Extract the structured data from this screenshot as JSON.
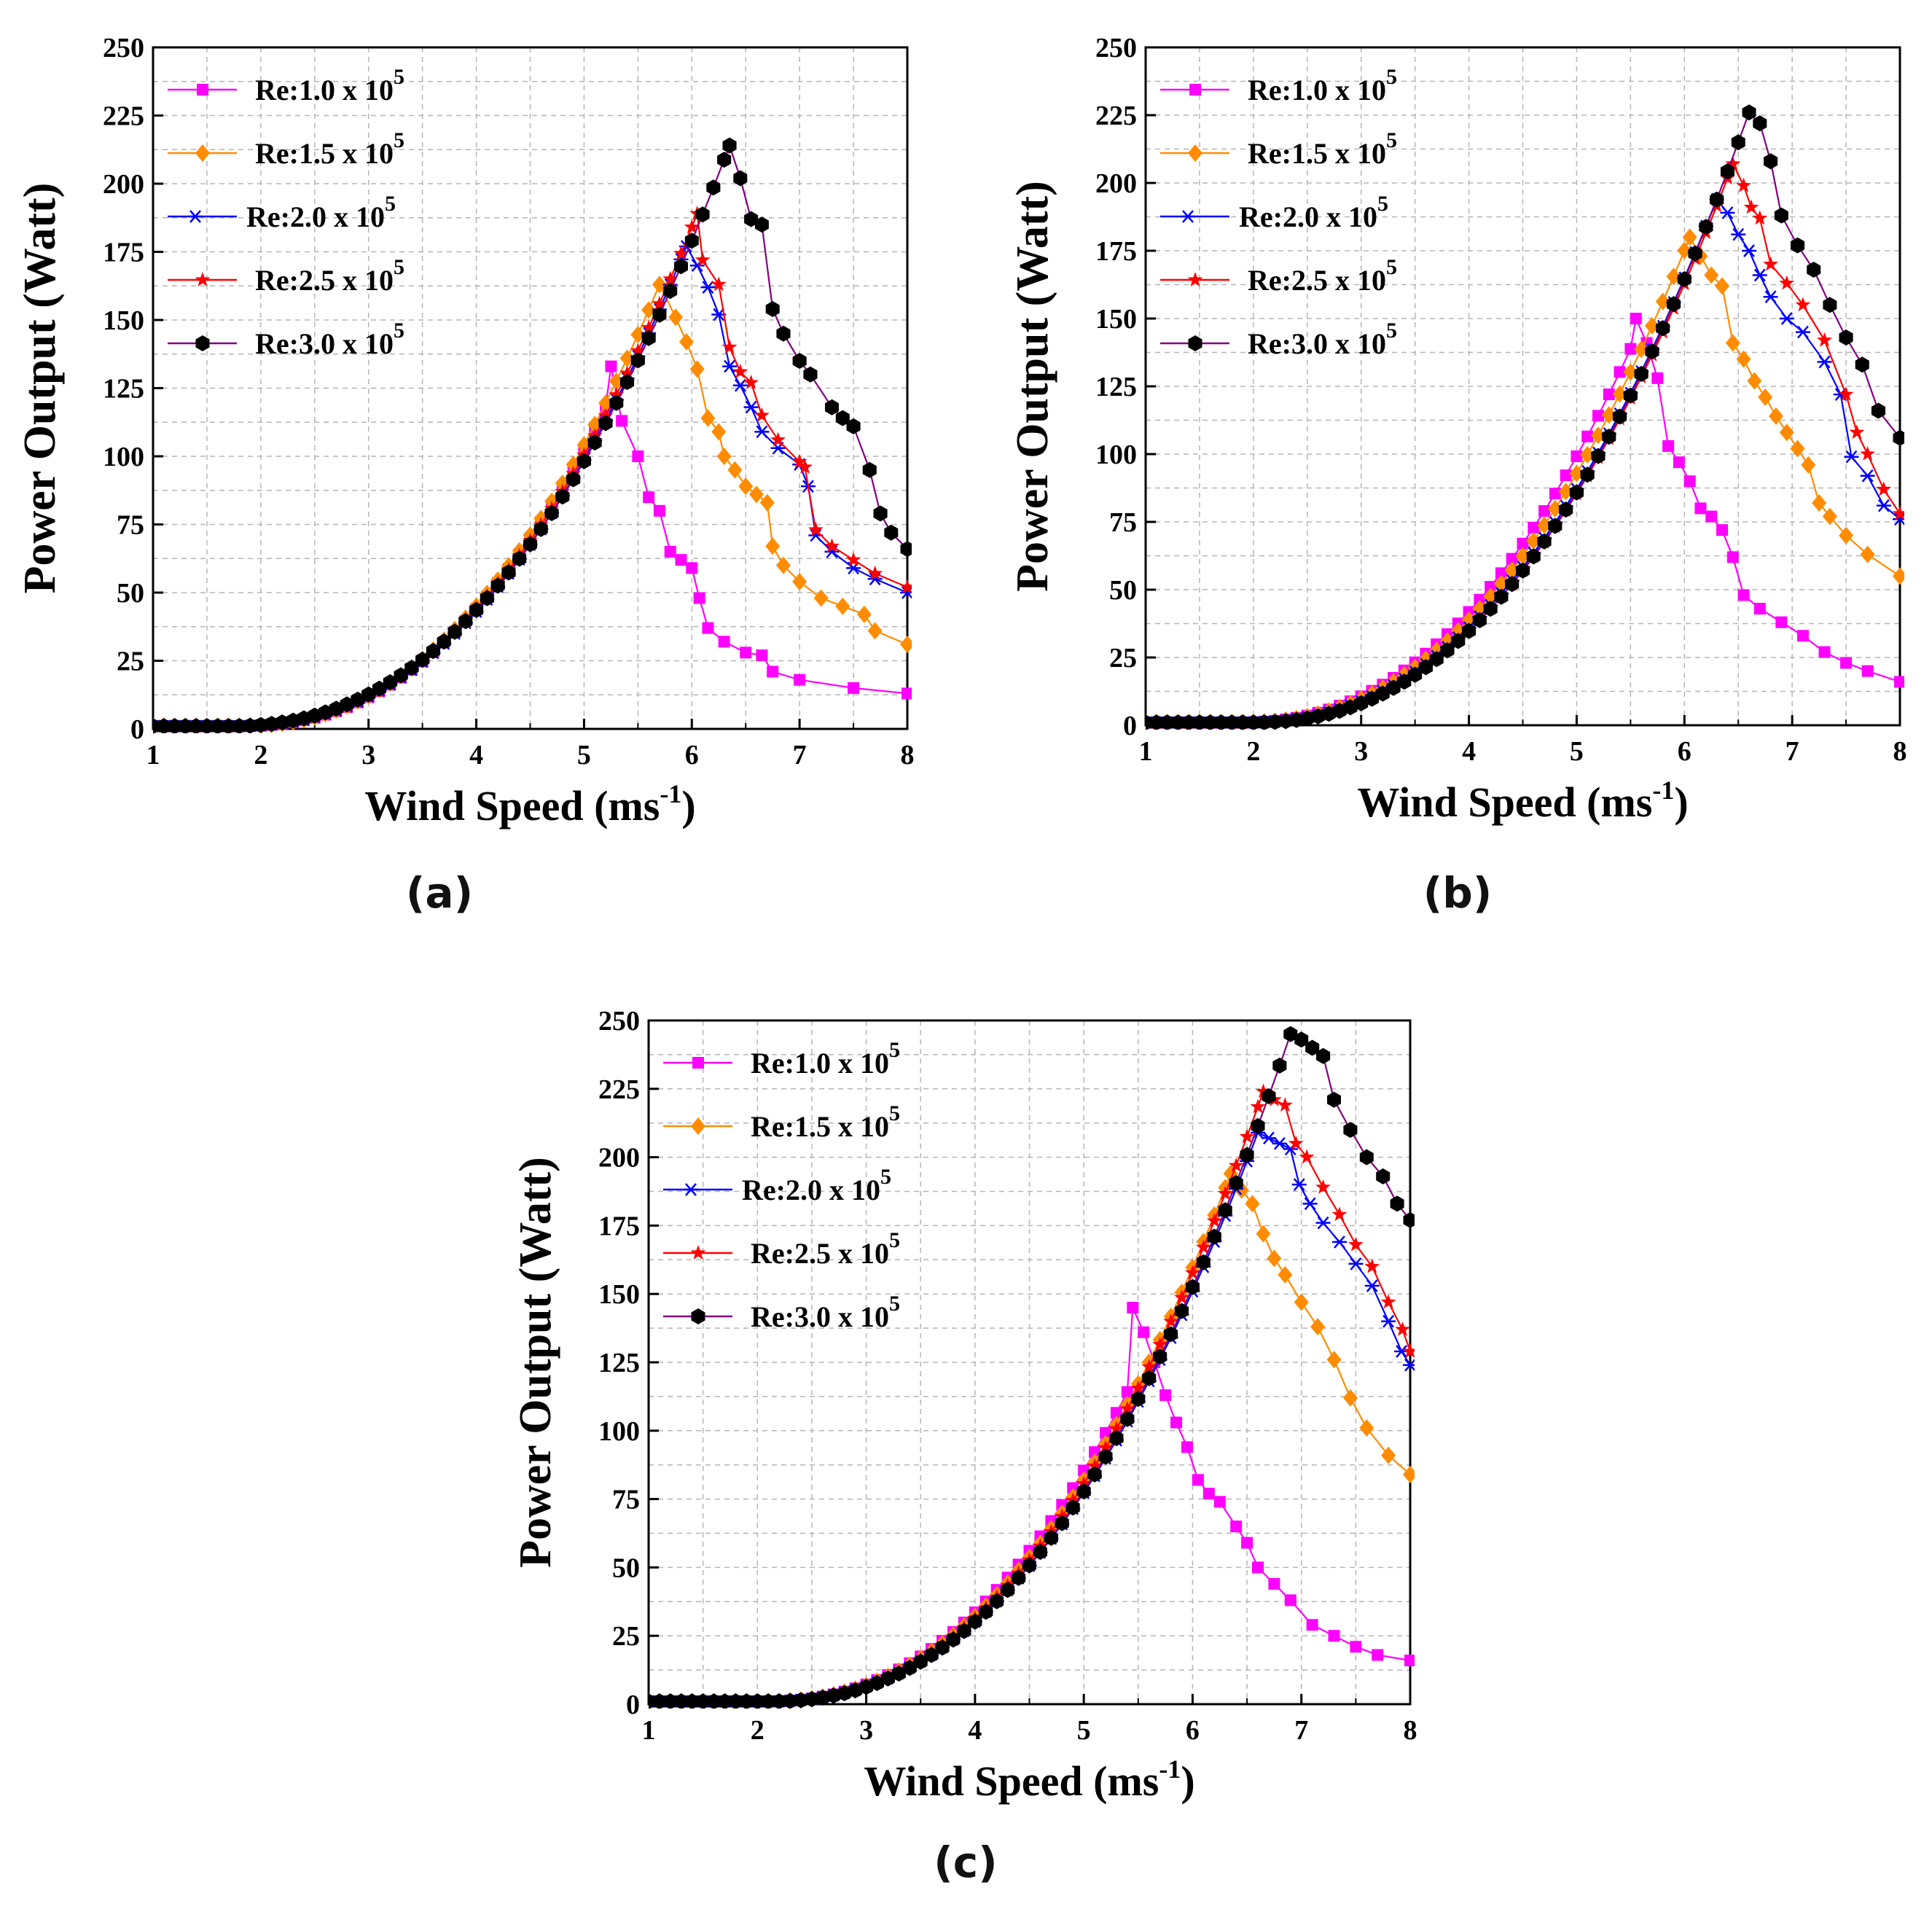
{
  "figure": {
    "panels": [
      {
        "id": "a",
        "label": "(a)"
      },
      {
        "id": "b",
        "label": "(b)"
      },
      {
        "id": "c",
        "label": "(c)"
      }
    ]
  },
  "colors": {
    "Re:1.0": "#ff00ff",
    "Re:1.5": "#ff8c00",
    "Re:2.0": "#0000ff",
    "Re:2.5": "#ff0000",
    "Re:3.0": "#800080",
    "marker_3.0": "#000000"
  },
  "chart_data": [
    {
      "panel": "(a)",
      "type": "line",
      "xlabel": "Wind Speed (ms",
      "xlabel_sup": "-1",
      "xlabel_end": ")",
      "ylabel": "Power Output (Watt)",
      "xlim": [
        1,
        8
      ],
      "ylim": [
        0,
        250
      ],
      "xticks": [
        "1",
        "2",
        "3",
        "4",
        "5",
        "6",
        "7",
        "8"
      ],
      "yticks": [
        "0",
        "25",
        "50",
        "75",
        "100",
        "125",
        "150",
        "175",
        "200",
        "225",
        "250"
      ],
      "grid": true,
      "legend_position": "top-left",
      "series": [
        {
          "name": "Re:1.0 x 10",
          "sup": "5",
          "marker": "square",
          "color": "#ff00ff",
          "peak": [
            5.25,
            133
          ],
          "drop": [
            [
              5.35,
              113
            ],
            [
              5.5,
              100
            ],
            [
              5.6,
              85
            ],
            [
              5.7,
              80
            ],
            [
              5.8,
              65
            ],
            [
              5.9,
              62
            ],
            [
              6.0,
              59
            ],
            [
              6.07,
              48
            ],
            [
              6.15,
              37
            ],
            [
              6.3,
              32
            ],
            [
              6.5,
              28
            ],
            [
              6.65,
              27
            ],
            [
              6.75,
              21
            ],
            [
              7.0,
              18
            ],
            [
              7.5,
              15
            ],
            [
              8.0,
              13
            ]
          ]
        },
        {
          "name": "Re:1.5 x 10",
          "sup": "5",
          "marker": "diamond",
          "color": "#ff8c00",
          "peak": [
            5.7,
            163
          ],
          "drop": [
            [
              5.85,
              151
            ],
            [
              5.95,
              142
            ],
            [
              6.05,
              132
            ],
            [
              6.15,
              114
            ],
            [
              6.25,
              109
            ],
            [
              6.3,
              100
            ],
            [
              6.4,
              95
            ],
            [
              6.5,
              89
            ],
            [
              6.6,
              86
            ],
            [
              6.7,
              83
            ],
            [
              6.75,
              67
            ],
            [
              6.85,
              60
            ],
            [
              7.0,
              54
            ],
            [
              7.2,
              48
            ],
            [
              7.4,
              45
            ],
            [
              7.6,
              42
            ],
            [
              7.7,
              36
            ],
            [
              8.0,
              31
            ]
          ]
        },
        {
          "name": "Re:2.0 x 10",
          "sup": "5",
          "marker": "asterisk",
          "color": "#0000ff",
          "peak": [
            5.95,
            177
          ],
          "drop": [
            [
              6.05,
              170
            ],
            [
              6.15,
              162
            ],
            [
              6.25,
              152
            ],
            [
              6.35,
              133
            ],
            [
              6.45,
              126
            ],
            [
              6.55,
              118
            ],
            [
              6.65,
              109
            ],
            [
              6.8,
              103
            ],
            [
              7.0,
              97
            ],
            [
              7.08,
              89
            ],
            [
              7.15,
              71
            ],
            [
              7.3,
              65
            ],
            [
              7.5,
              59
            ],
            [
              7.7,
              55
            ],
            [
              8.0,
              50
            ]
          ]
        },
        {
          "name": "Re:2.5 x 10",
          "sup": "5",
          "marker": "star",
          "color": "#ff0000",
          "peak": [
            6.05,
            189
          ],
          "drop": [
            [
              6.1,
              172
            ],
            [
              6.25,
              163
            ],
            [
              6.35,
              140
            ],
            [
              6.45,
              131
            ],
            [
              6.55,
              127
            ],
            [
              6.65,
              115
            ],
            [
              6.8,
              106
            ],
            [
              7.0,
              98
            ],
            [
              7.05,
              96
            ],
            [
              7.15,
              73
            ],
            [
              7.3,
              67
            ],
            [
              7.5,
              62
            ],
            [
              7.7,
              57
            ],
            [
              8.0,
              52
            ]
          ]
        },
        {
          "name": "Re:3.0 x 10",
          "sup": "5",
          "marker": "hexagon",
          "color": "#800080",
          "peak": [
            6.35,
            214
          ],
          "drop": [
            [
              6.45,
              202
            ],
            [
              6.55,
              187
            ],
            [
              6.65,
              185
            ],
            [
              6.75,
              154
            ],
            [
              6.85,
              145
            ],
            [
              7.0,
              135
            ],
            [
              7.1,
              130
            ],
            [
              7.3,
              118
            ],
            [
              7.4,
              114
            ],
            [
              7.5,
              111
            ],
            [
              7.65,
              95
            ],
            [
              7.75,
              79
            ],
            [
              7.85,
              72
            ],
            [
              8.0,
              66
            ]
          ]
        }
      ]
    },
    {
      "panel": "(b)",
      "type": "line",
      "xlabel": "Wind Speed (ms",
      "xlabel_sup": "-1",
      "xlabel_end": ")",
      "ylabel": "Power Output (Watt)",
      "xlim": [
        1,
        8
      ],
      "ylim": [
        0,
        250
      ],
      "xticks": [
        "1",
        "2",
        "3",
        "4",
        "5",
        "6",
        "7",
        "8"
      ],
      "yticks": [
        "0",
        "25",
        "50",
        "75",
        "100",
        "125",
        "150",
        "175",
        "200",
        "225",
        "250"
      ],
      "grid": true,
      "legend_position": "top-left",
      "series": [
        {
          "name": "Re:1.0 x 10",
          "sup": "5",
          "marker": "square",
          "color": "#ff00ff",
          "peak": [
            5.55,
            150
          ],
          "drop": [
            [
              5.65,
              141
            ],
            [
              5.75,
              128
            ],
            [
              5.85,
              103
            ],
            [
              5.95,
              97
            ],
            [
              6.05,
              90
            ],
            [
              6.15,
              80
            ],
            [
              6.25,
              77
            ],
            [
              6.35,
              72
            ],
            [
              6.45,
              62
            ],
            [
              6.55,
              48
            ],
            [
              6.7,
              43
            ],
            [
              6.9,
              38
            ],
            [
              7.1,
              33
            ],
            [
              7.3,
              27
            ],
            [
              7.5,
              23
            ],
            [
              7.7,
              20
            ],
            [
              8.0,
              16
            ]
          ]
        },
        {
          "name": "Re:1.5 x 10",
          "sup": "5",
          "marker": "diamond",
          "color": "#ff8c00",
          "peak": [
            6.05,
            180
          ],
          "drop": [
            [
              6.15,
              173
            ],
            [
              6.25,
              166
            ],
            [
              6.35,
              162
            ],
            [
              6.45,
              141
            ],
            [
              6.55,
              135
            ],
            [
              6.65,
              127
            ],
            [
              6.75,
              121
            ],
            [
              6.85,
              114
            ],
            [
              6.95,
              108
            ],
            [
              7.05,
              102
            ],
            [
              7.15,
              96
            ],
            [
              7.25,
              82
            ],
            [
              7.35,
              77
            ],
            [
              7.5,
              70
            ],
            [
              7.7,
              63
            ],
            [
              8.0,
              55
            ]
          ]
        },
        {
          "name": "Re:2.0 x 10",
          "sup": "5",
          "marker": "asterisk",
          "color": "#0000ff",
          "peak": [
            6.3,
            194
          ],
          "drop": [
            [
              6.4,
              189
            ],
            [
              6.5,
              181
            ],
            [
              6.6,
              175
            ],
            [
              6.7,
              166
            ],
            [
              6.8,
              158
            ],
            [
              6.95,
              150
            ],
            [
              7.1,
              145
            ],
            [
              7.3,
              134
            ],
            [
              7.45,
              122
            ],
            [
              7.55,
              99
            ],
            [
              7.7,
              92
            ],
            [
              7.85,
              81
            ],
            [
              8.0,
              76
            ]
          ]
        },
        {
          "name": "Re:2.5 x 10",
          "sup": "5",
          "marker": "star",
          "color": "#ff0000",
          "peak": [
            6.45,
            207
          ],
          "drop": [
            [
              6.55,
              199
            ],
            [
              6.62,
              191
            ],
            [
              6.7,
              187
            ],
            [
              6.8,
              170
            ],
            [
              6.95,
              163
            ],
            [
              7.1,
              155
            ],
            [
              7.3,
              142
            ],
            [
              7.5,
              122
            ],
            [
              7.6,
              108
            ],
            [
              7.7,
              100
            ],
            [
              7.85,
              87
            ],
            [
              8.0,
              78
            ]
          ]
        },
        {
          "name": "Re:3.0 x 10",
          "sup": "5",
          "marker": "hexagon",
          "color": "#800080",
          "peak": [
            6.6,
            226
          ],
          "drop": [
            [
              6.7,
              222
            ],
            [
              6.8,
              208
            ],
            [
              6.9,
              188
            ],
            [
              7.05,
              177
            ],
            [
              7.2,
              168
            ],
            [
              7.35,
              155
            ],
            [
              7.5,
              143
            ],
            [
              7.65,
              133
            ],
            [
              7.8,
              116
            ],
            [
              8.0,
              106
            ]
          ]
        }
      ]
    },
    {
      "panel": "(c)",
      "type": "line",
      "xlabel": "Wind Speed (ms",
      "xlabel_sup": "-1",
      "xlabel_end": ")",
      "ylabel": "Power Output (Watt)",
      "xlim": [
        1,
        8
      ],
      "ylim": [
        0,
        250
      ],
      "xticks": [
        "1",
        "2",
        "3",
        "4",
        "5",
        "6",
        "7",
        "8"
      ],
      "yticks": [
        "0",
        "25",
        "50",
        "75",
        "100",
        "125",
        "150",
        "175",
        "200",
        "225",
        "250"
      ],
      "grid": true,
      "legend_position": "top-left",
      "series": [
        {
          "name": "Re:1.0 x 10",
          "sup": "5",
          "marker": "square",
          "color": "#ff00ff",
          "peak": [
            5.45,
            145
          ],
          "drop": [
            [
              5.55,
              136
            ],
            [
              5.65,
              125
            ],
            [
              5.75,
              113
            ],
            [
              5.85,
              103
            ],
            [
              5.95,
              94
            ],
            [
              6.05,
              82
            ],
            [
              6.15,
              77
            ],
            [
              6.25,
              74
            ],
            [
              6.4,
              65
            ],
            [
              6.5,
              59
            ],
            [
              6.6,
              50
            ],
            [
              6.75,
              44
            ],
            [
              6.9,
              38
            ],
            [
              7.1,
              29
            ],
            [
              7.3,
              25
            ],
            [
              7.5,
              21
            ],
            [
              7.7,
              18
            ],
            [
              8.0,
              16
            ]
          ]
        },
        {
          "name": "Re:1.5 x 10",
          "sup": "5",
          "marker": "diamond",
          "color": "#ff8c00",
          "peak": [
            6.35,
            194
          ],
          "drop": [
            [
              6.45,
              188
            ],
            [
              6.55,
              183
            ],
            [
              6.65,
              172
            ],
            [
              6.75,
              163
            ],
            [
              6.85,
              157
            ],
            [
              7.0,
              147
            ],
            [
              7.15,
              138
            ],
            [
              7.3,
              126
            ],
            [
              7.45,
              112
            ],
            [
              7.6,
              101
            ],
            [
              7.8,
              91
            ],
            [
              8.0,
              84
            ]
          ]
        },
        {
          "name": "Re:2.0 x 10",
          "sup": "5",
          "marker": "asterisk",
          "color": "#0000ff",
          "peak": [
            6.6,
            209
          ],
          "drop": [
            [
              6.7,
              207
            ],
            [
              6.8,
              205
            ],
            [
              6.9,
              203
            ],
            [
              6.98,
              190
            ],
            [
              7.08,
              183
            ],
            [
              7.2,
              176
            ],
            [
              7.35,
              169
            ],
            [
              7.5,
              161
            ],
            [
              7.65,
              153
            ],
            [
              7.8,
              140
            ],
            [
              7.92,
              129
            ],
            [
              8.0,
              124
            ]
          ]
        },
        {
          "name": "Re:2.5 x 10",
          "sup": "5",
          "marker": "star",
          "color": "#ff0000",
          "peak": [
            6.65,
            224
          ],
          "drop": [
            [
              6.75,
              221
            ],
            [
              6.85,
              219
            ],
            [
              6.95,
              205
            ],
            [
              7.05,
              200
            ],
            [
              7.2,
              189
            ],
            [
              7.35,
              179
            ],
            [
              7.5,
              168
            ],
            [
              7.65,
              160
            ],
            [
              7.8,
              147
            ],
            [
              7.93,
              137
            ],
            [
              8.0,
              129
            ]
          ]
        },
        {
          "name": "Re:3.0 x 10",
          "sup": "5",
          "marker": "hexagon",
          "color": "#800080",
          "peak": [
            6.9,
            245
          ],
          "drop": [
            [
              7.0,
              243
            ],
            [
              7.1,
              240
            ],
            [
              7.2,
              237
            ],
            [
              7.3,
              221
            ],
            [
              7.45,
              210
            ],
            [
              7.6,
              200
            ],
            [
              7.75,
              193
            ],
            [
              7.88,
              183
            ],
            [
              8.0,
              177
            ]
          ]
        }
      ]
    }
  ]
}
